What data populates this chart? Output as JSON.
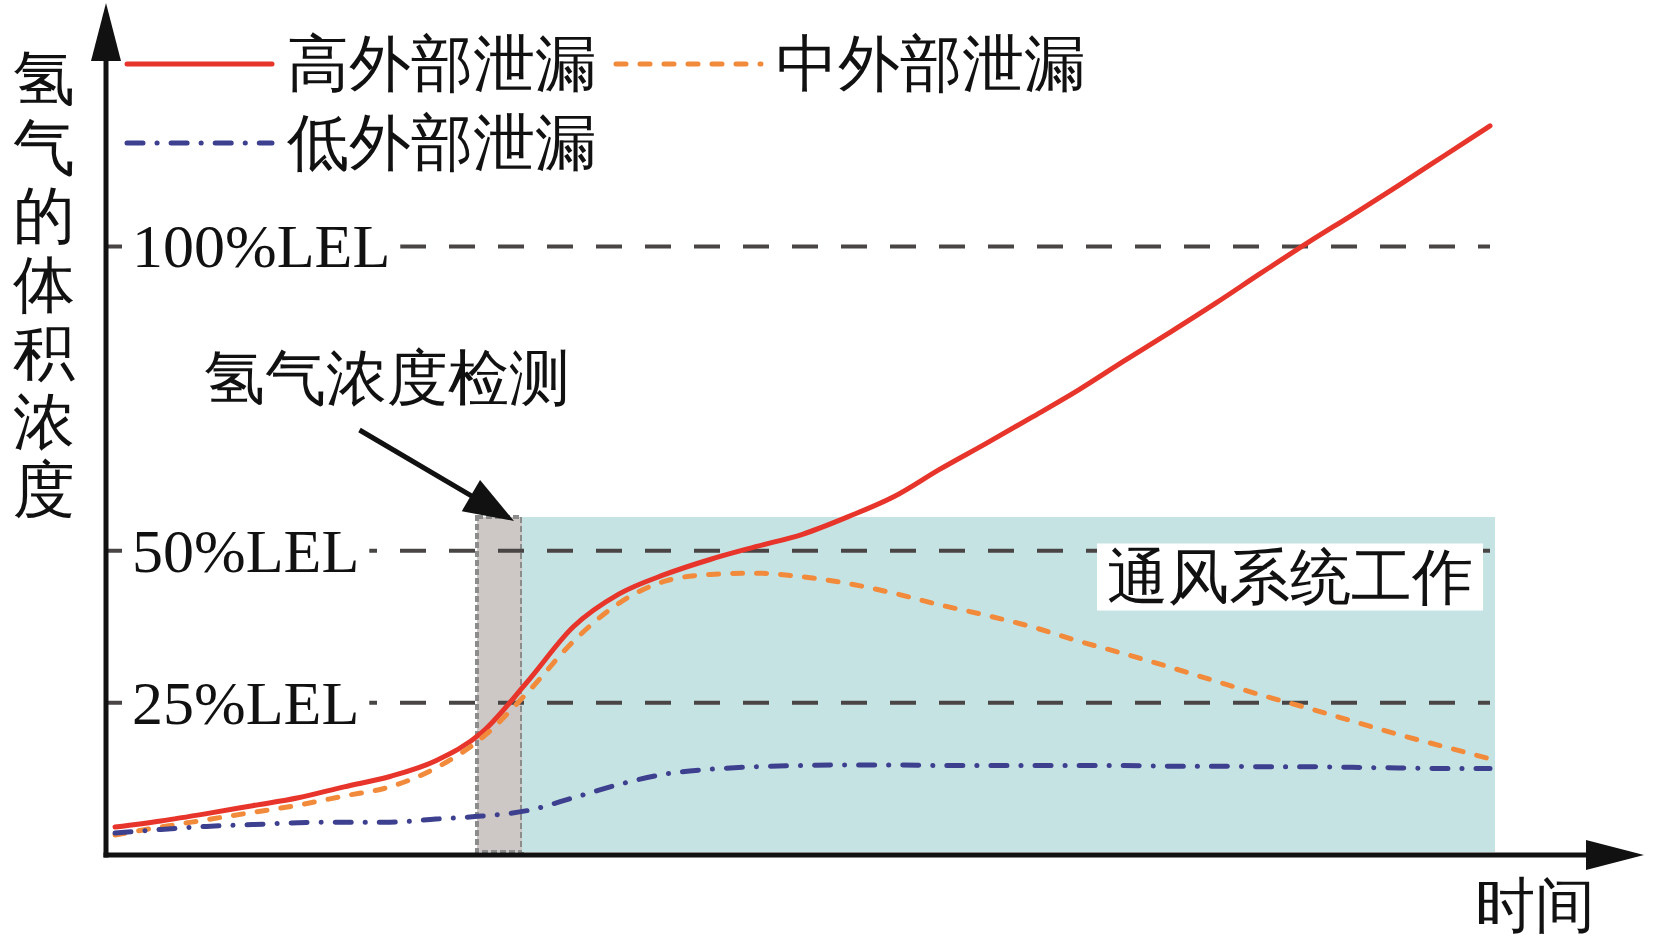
{
  "chart_data": {
    "type": "line",
    "xlabel": "时间",
    "ylabel": "氢气的体积浓度",
    "categories": [
      null,
      null,
      null,
      null,
      null,
      null,
      null,
      null,
      null,
      null,
      null,
      null,
      null,
      null,
      null,
      null,
      null,
      null,
      null,
      null,
      null,
      null,
      null,
      null,
      null,
      null,
      null,
      null,
      null,
      null,
      null
    ],
    "ylim": [
      0,
      140
    ],
    "yticks": [
      {
        "value": 25,
        "label": "25%LEL"
      },
      {
        "value": 50,
        "label": "50%LEL"
      },
      {
        "value": 100,
        "label": "100%LEL"
      }
    ],
    "tick_labels": "y",
    "grid": "y",
    "legend": "top left",
    "series": [
      {
        "name": "高外部泄漏",
        "color": "#e8352b",
        "line_style": "solid",
        "values": [
          4.6,
          5.6,
          6.8,
          8.1,
          9.4,
          11.2,
          12.9,
          15.5,
          20.1,
          28.5,
          37.5,
          42.9,
          46.1,
          48.6,
          50.7,
          52.7,
          55.6,
          58.9,
          63.4,
          67.6,
          71.9,
          76.3,
          81.1,
          85.8,
          90.6,
          95.6,
          100.5,
          105.2,
          110.0,
          114.9,
          119.8
        ]
      },
      {
        "name": "中外部泄漏",
        "color": "#f28a3c",
        "line_style": "dashed",
        "values": [
          3.3,
          4.6,
          5.8,
          7.0,
          8.2,
          9.7,
          11.2,
          14.3,
          19.2,
          26.7,
          35.1,
          41.4,
          45.0,
          46.1,
          46.3,
          45.7,
          44.6,
          43.0,
          41.1,
          39.4,
          37.5,
          35.2,
          33.1,
          30.9,
          28.6,
          26.3,
          24.2,
          22.0,
          19.8,
          17.8,
          15.8
        ]
      },
      {
        "name": "低外部泄漏",
        "color": "#3d3f8f",
        "line_style": "dashdot",
        "values": [
          3.6,
          4.2,
          4.7,
          5.0,
          5.3,
          5.4,
          5.4,
          5.9,
          6.4,
          7.3,
          9.4,
          11.6,
          13.3,
          14.1,
          14.5,
          14.7,
          14.8,
          14.8,
          14.7,
          14.7,
          14.7,
          14.7,
          14.7,
          14.6,
          14.6,
          14.5,
          14.5,
          14.4,
          14.3,
          14.2,
          14.2
        ]
      }
    ],
    "annotations": [
      "氢气浓度检测",
      "通风系统工作"
    ]
  }
}
